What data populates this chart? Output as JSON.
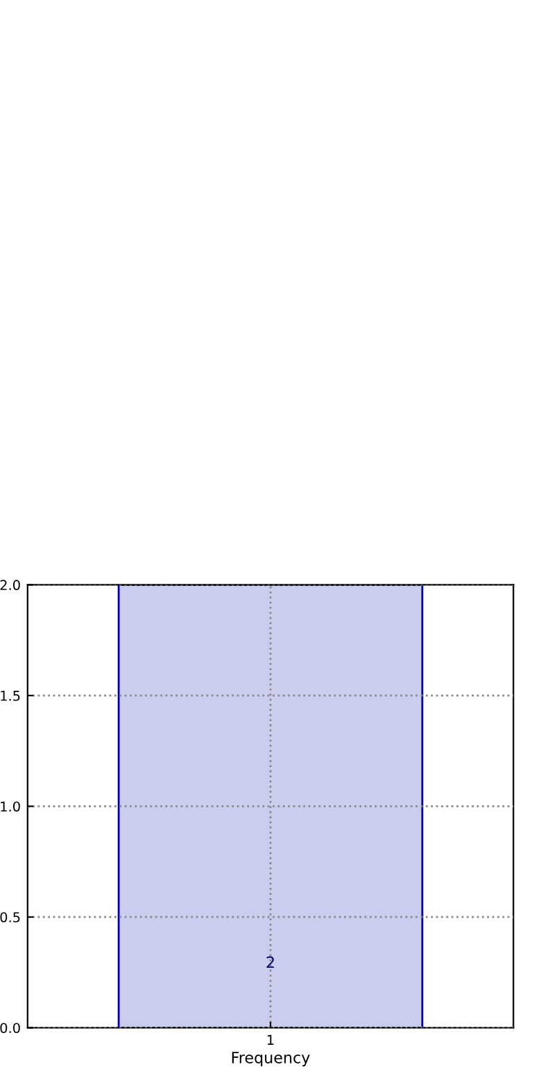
{
  "chart_data": {
    "type": "bar",
    "categories": [
      "1"
    ],
    "values": [
      2
    ],
    "color": "#ccccee",
    "xlabel": "Frequency",
    "ylim": [
      0,
      2
    ],
    "yticks": [
      {
        "value": 0,
        "label": "0.0"
      },
      {
        "value": 0.5,
        "label": "0.5"
      },
      {
        "value": 1,
        "label": "1.0"
      },
      {
        "value": 1.5,
        "label": "1.5"
      },
      {
        "value": 2,
        "label": "2.0"
      }
    ],
    "grid": true,
    "data_labels": true
  }
}
